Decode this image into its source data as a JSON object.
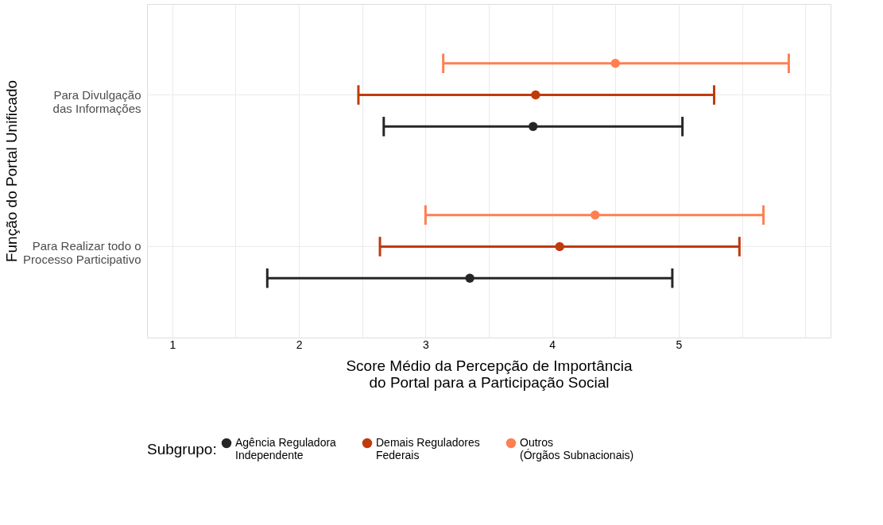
{
  "chart_data": {
    "type": "scatter",
    "orientation": "horizontal",
    "categories": [
      "Para Divulgação\ndas Informações",
      "Para Realizar todo o\nProcesso Participativo"
    ],
    "series": [
      {
        "name": "Agência Reguladora\nIndependente",
        "color": "#262626",
        "values": [
          3.85,
          3.35
        ],
        "errors": [
          [
            2.67,
            5.03
          ],
          [
            1.75,
            4.95
          ]
        ]
      },
      {
        "name": "Demais Reguladores\nFederais",
        "color": "#bf3b0b",
        "values": [
          3.87,
          4.06
        ],
        "errors": [
          [
            2.47,
            5.28
          ],
          [
            2.64,
            5.48
          ]
        ]
      },
      {
        "name": "Outros\n(Órgãos Subnacionais)",
        "color": "#ff7f50",
        "values": [
          4.5,
          4.34
        ],
        "errors": [
          [
            3.14,
            5.87
          ],
          [
            3.0,
            5.67
          ]
        ]
      }
    ],
    "xlim": [
      0.8,
      6.2
    ],
    "xticks": [
      1,
      {
        "value": 1.5,
        "label": null
      },
      2,
      {
        "value": 2.5,
        "label": null
      },
      3,
      {
        "value": 3.5,
        "label": null
      },
      4,
      {
        "value": 4.5,
        "label": null
      },
      5,
      {
        "value": 5.5,
        "label": null
      },
      {
        "value": 6,
        "label": null
      }
    ],
    "xlabel": "Score Médio da Percepção de Importância\ndo Portal para a Participação Social",
    "ylabel": "Função do Portal Unificado",
    "legend_title": "Subgrupo:",
    "legend": "bottom",
    "grid": true,
    "marker": "circle"
  }
}
